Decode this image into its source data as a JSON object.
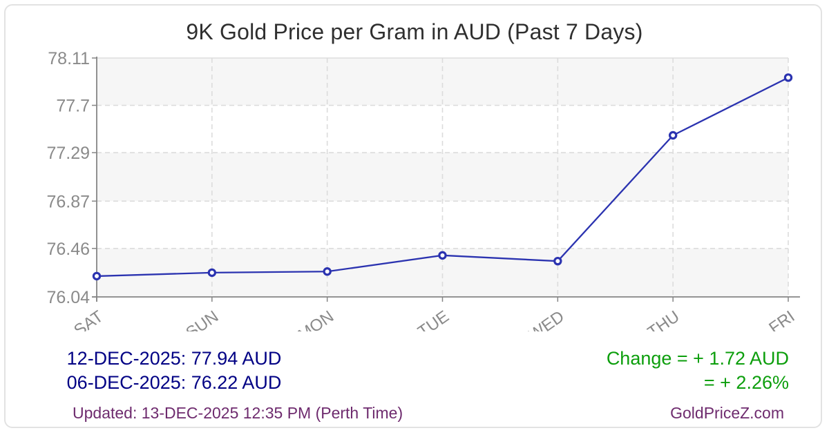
{
  "title": "9K Gold Price per Gram in AUD (Past 7 Days)",
  "chart_data": {
    "type": "line",
    "categories": [
      "SAT",
      "SUN",
      "MON",
      "TUE",
      "WED",
      "THU",
      "FRI"
    ],
    "series": [
      {
        "name": "9K Gold Price per Gram (AUD)",
        "values": [
          76.22,
          76.25,
          76.26,
          76.4,
          76.35,
          77.44,
          77.94
        ]
      }
    ],
    "y_ticks": [
      "78.11",
      "77.7",
      "77.29",
      "76.87",
      "76.46",
      "76.04"
    ],
    "ylim": [
      76.04,
      78.11
    ],
    "xlabel": "",
    "ylabel": "",
    "grid": true,
    "legend": "none",
    "marker": "open-circle"
  },
  "summary": {
    "latest": "12-DEC-2025: 77.94 AUD",
    "earliest": "06-DEC-2025: 76.22 AUD",
    "change_line1": "Change = + 1.72 AUD",
    "change_line2": "= + 2.26%"
  },
  "footer": {
    "updated": "Updated: 13-DEC-2025 12:35 PM (Perth Time)",
    "site": "GoldPriceZ.com"
  },
  "colors": {
    "line": "#2b33b0",
    "marker_fill": "#ffffff",
    "navy": "#000084",
    "green": "#0c9e0c",
    "purple": "#6e2b6e",
    "axis_label": "#8a8a8a",
    "band": "#f6f6f6",
    "grid": "#dcdcdc",
    "axis": "#858585"
  }
}
